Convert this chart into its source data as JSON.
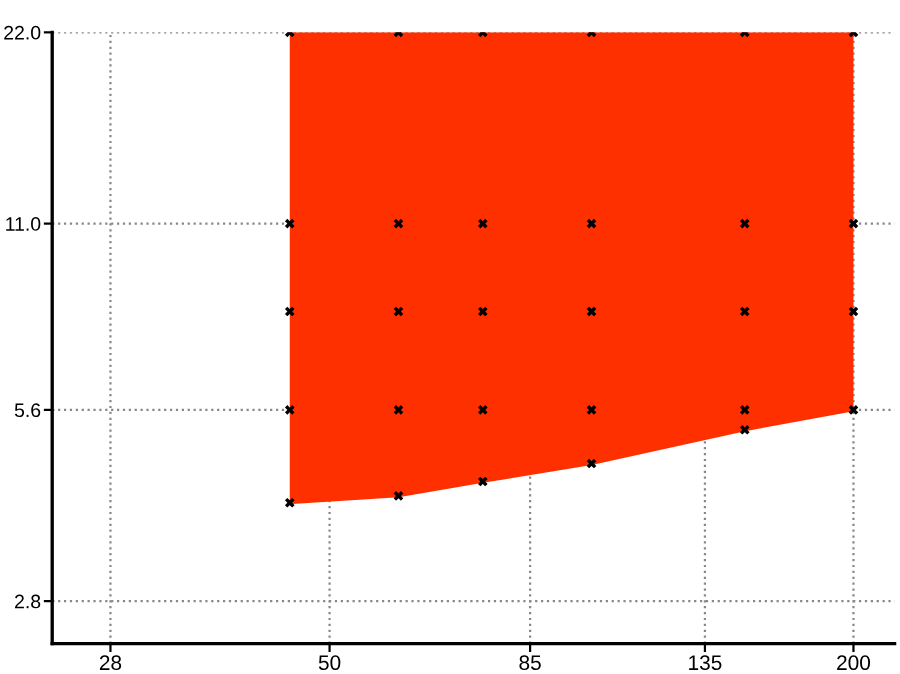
{
  "chart_data": {
    "type": "scatter",
    "xlim": [
      24,
      223
    ],
    "ylim": [
      2.4,
      22
    ],
    "log": "xy",
    "xticks": [
      28,
      50,
      85,
      135,
      200
    ],
    "yticks": [
      {
        "value": 2.8,
        "label": "2.8"
      },
      {
        "value": 5.6,
        "label": "5.6"
      },
      {
        "value": 11,
        "label": "11.0"
      },
      {
        "value": 22,
        "label": "22.0"
      }
    ],
    "grid": true,
    "series": [
      {
        "type": "line",
        "x": [
          45,
          60,
          75,
          100,
          150,
          200
        ],
        "values": [
          4.0,
          4.1,
          4.32,
          4.61,
          5.21,
          5.6
        ],
        "lower": [
          4.0,
          4.1,
          4.32,
          4.61,
          5.21,
          5.6
        ],
        "upper": [
          22,
          22,
          22,
          22,
          22,
          22
        ],
        "color": "#ff3000"
      },
      {
        "color": "#000000",
        "marker": "cross",
        "x": [
          45,
          60,
          75,
          100,
          150,
          200,
          45,
          60,
          75,
          100,
          150,
          200,
          45,
          60,
          75,
          100,
          150,
          200,
          45,
          60,
          75,
          100,
          150,
          200,
          45,
          60,
          75,
          100,
          150
        ],
        "values": [
          22,
          22,
          22,
          22,
          22,
          22,
          11,
          11,
          11,
          11,
          11,
          11,
          8,
          8,
          8,
          8,
          8,
          8,
          5.6,
          5.6,
          5.6,
          5.6,
          5.6,
          5.6,
          4.0,
          4.1,
          4.32,
          4.61,
          5.21
        ]
      }
    ]
  }
}
